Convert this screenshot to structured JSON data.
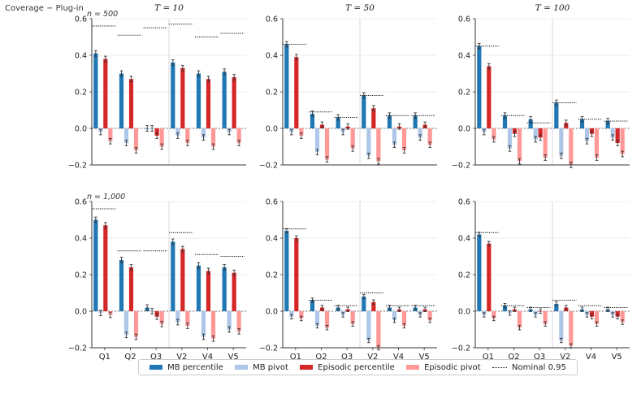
{
  "suptitle": "Coverage − Plug-in",
  "legend": {
    "items": [
      {
        "label": "MB percentile",
        "color": "#1f77b4"
      },
      {
        "label": "MB pivot",
        "color": "#aec7e8"
      },
      {
        "label": "Episodic percentile",
        "color": "#d62728"
      },
      {
        "label": "Episodic pivot",
        "color": "#ff9896"
      }
    ],
    "nominal_label": "Nominal 0.95"
  },
  "chart_data": {
    "type": "bar",
    "layout": "grid 2 rows x 3 columns",
    "column_titles": [
      "T = 10",
      "T = 50",
      "T = 100"
    ],
    "row_labels": [
      "n = 500",
      "n = 1,000"
    ],
    "categories": [
      "Q1",
      "Q2",
      "Q3",
      "V2",
      "V4",
      "V5"
    ],
    "group_divider_after": "Q3",
    "ylim": [
      -0.2,
      0.6
    ],
    "yticks": [
      "−0.2",
      "0.0",
      "0.2",
      "0.4",
      "0.6"
    ],
    "grid": "horizontal",
    "zero_line": "dotted",
    "series_names": [
      "MB percentile",
      "MB pivot",
      "Episodic percentile",
      "Episodic pivot"
    ],
    "panels": [
      {
        "row": 0,
        "col": 0,
        "series": [
          {
            "name": "MB percentile",
            "values": [
              0.41,
              0.3,
              0.0,
              0.36,
              0.3,
              0.31
            ]
          },
          {
            "name": "MB pivot",
            "values": [
              -0.02,
              -0.08,
              0.0,
              -0.04,
              -0.05,
              -0.02
            ]
          },
          {
            "name": "Episodic percentile",
            "values": [
              0.38,
              0.27,
              -0.04,
              0.33,
              0.27,
              0.28
            ]
          },
          {
            "name": "Episodic pivot",
            "values": [
              -0.07,
              -0.12,
              -0.1,
              -0.08,
              -0.1,
              -0.08
            ]
          }
        ],
        "nominal": [
          0.56,
          0.51,
          0.55,
          0.57,
          0.5,
          0.52
        ],
        "error": 0.015
      },
      {
        "row": 0,
        "col": 1,
        "series": [
          {
            "name": "MB percentile",
            "values": [
              0.46,
              0.08,
              0.06,
              0.18,
              0.07,
              0.07
            ]
          },
          {
            "name": "MB pivot",
            "values": [
              -0.02,
              -0.13,
              -0.02,
              -0.15,
              -0.09,
              -0.05
            ]
          },
          {
            "name": "Episodic percentile",
            "values": [
              0.39,
              0.02,
              0.01,
              0.11,
              0.01,
              0.02
            ]
          },
          {
            "name": "Episodic pivot",
            "values": [
              -0.04,
              -0.17,
              -0.11,
              -0.18,
              -0.12,
              -0.09
            ]
          }
        ],
        "nominal": [
          0.46,
          0.09,
          0.06,
          0.18,
          0.07,
          0.07
        ],
        "error": 0.015
      },
      {
        "row": 0,
        "col": 2,
        "series": [
          {
            "name": "MB percentile",
            "values": [
              0.45,
              0.07,
              0.05,
              0.14,
              0.05,
              0.04
            ]
          },
          {
            "name": "MB pivot",
            "values": [
              -0.02,
              -0.11,
              -0.06,
              -0.15,
              -0.07,
              -0.05
            ]
          },
          {
            "name": "Episodic percentile",
            "values": [
              0.34,
              -0.03,
              -0.05,
              0.03,
              -0.03,
              -0.08
            ]
          },
          {
            "name": "Episodic pivot",
            "values": [
              -0.06,
              -0.18,
              -0.16,
              -0.2,
              -0.16,
              -0.14
            ]
          }
        ],
        "nominal": [
          0.45,
          0.07,
          0.03,
          0.14,
          0.05,
          0.04
        ],
        "error": 0.015
      },
      {
        "row": 1,
        "col": 0,
        "series": [
          {
            "name": "MB percentile",
            "values": [
              0.5,
              0.28,
              0.02,
              0.38,
              0.25,
              0.24
            ]
          },
          {
            "name": "MB pivot",
            "values": [
              -0.01,
              -0.13,
              0.0,
              -0.06,
              -0.14,
              -0.1
            ]
          },
          {
            "name": "Episodic percentile",
            "values": [
              0.47,
              0.24,
              -0.03,
              0.34,
              0.22,
              0.21
            ]
          },
          {
            "name": "Episodic pivot",
            "values": [
              -0.02,
              -0.14,
              -0.07,
              -0.08,
              -0.15,
              -0.11
            ]
          }
        ],
        "nominal": [
          0.56,
          0.33,
          0.33,
          0.43,
          0.31,
          0.3
        ],
        "error": 0.015
      },
      {
        "row": 1,
        "col": 1,
        "series": [
          {
            "name": "MB percentile",
            "values": [
              0.44,
              0.06,
              0.02,
              0.08,
              0.02,
              0.02
            ]
          },
          {
            "name": "MB pivot",
            "values": [
              -0.03,
              -0.08,
              -0.02,
              -0.16,
              -0.05,
              -0.02
            ]
          },
          {
            "name": "Episodic percentile",
            "values": [
              0.4,
              0.02,
              0.01,
              0.05,
              0.01,
              0.01
            ]
          },
          {
            "name": "Episodic pivot",
            "values": [
              -0.04,
              -0.09,
              -0.07,
              -0.2,
              -0.08,
              -0.05
            ]
          }
        ],
        "nominal": [
          0.45,
          0.06,
          0.03,
          0.1,
          0.03,
          0.03
        ],
        "error": 0.012
      },
      {
        "row": 1,
        "col": 2,
        "series": [
          {
            "name": "MB percentile",
            "values": [
              0.42,
              0.03,
              0.01,
              0.04,
              0.01,
              0.01
            ]
          },
          {
            "name": "MB pivot",
            "values": [
              -0.02,
              -0.01,
              -0.02,
              -0.16,
              -0.02,
              -0.02
            ]
          },
          {
            "name": "Episodic percentile",
            "values": [
              0.37,
              0.01,
              0.0,
              0.02,
              -0.03,
              -0.03
            ]
          },
          {
            "name": "Episodic pivot",
            "values": [
              -0.04,
              -0.09,
              -0.07,
              -0.19,
              -0.07,
              -0.06
            ]
          }
        ],
        "nominal": [
          0.43,
          0.03,
          0.02,
          0.06,
          0.03,
          0.02
        ],
        "error": 0.012
      }
    ]
  }
}
